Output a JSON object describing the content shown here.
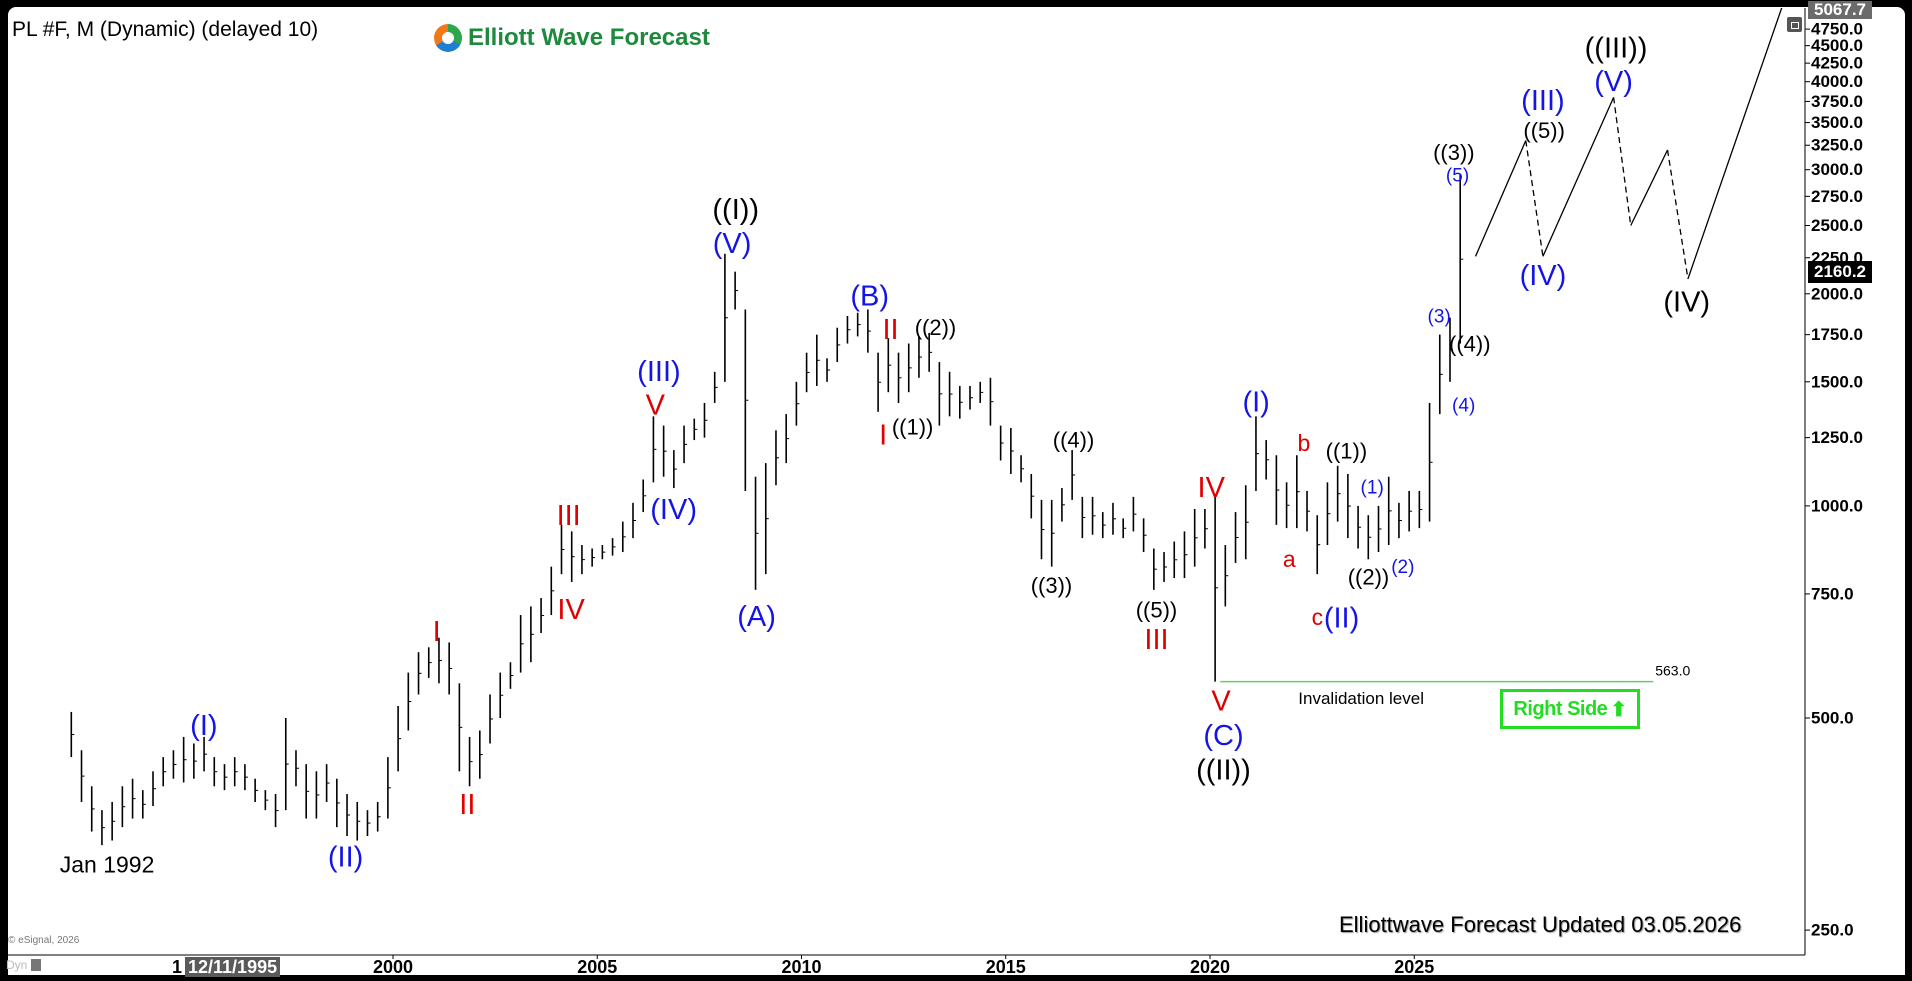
{
  "header": {
    "symbol_title": "PL #F, M (Dynamic) (delayed 10)",
    "logo_text": "Elliott Wave Forecast"
  },
  "footer": {
    "updated_text": "Elliottwave Forecast Updated 03.05.2026",
    "copyright": "© eSignal, 2026",
    "dyn_label": "Dyn",
    "crosshair_date_prefix": "1",
    "crosshair_date": "12/11/1995"
  },
  "price_tags": {
    "top": "5067.7",
    "current": "2160.2"
  },
  "right_side": {
    "label": "Right Side",
    "arrow": "⬆",
    "color": "#22dd22"
  },
  "icons": {
    "restore": "window-restore-icon",
    "lock": "lock-icon"
  },
  "colors": {
    "blue": "#1414e6",
    "red": "#e00000",
    "black": "#000000",
    "invalidation": "#66cc66"
  },
  "chart_data": {
    "type": "ohlc-bar",
    "scale": "log",
    "grid": false,
    "x_ticks": [
      "2000",
      "2005",
      "2010",
      "2015",
      "2020",
      "2025"
    ],
    "y_ticks": [
      250,
      500,
      750,
      1000,
      1250,
      1500,
      1750,
      2000,
      2250,
      2500,
      2750,
      3000,
      3250,
      3500,
      3750,
      4000,
      4250,
      4500,
      4750
    ],
    "y_tick_format": "0.0",
    "ylim": [
      240,
      5100
    ],
    "xlim": [
      1991.8,
      2034.5
    ],
    "bars_period": "quarter",
    "bars_start": 1992,
    "bars_hl": [
      [
        510,
        440
      ],
      [
        450,
        380
      ],
      [
        400,
        345
      ],
      [
        370,
        330
      ],
      [
        380,
        335
      ],
      [
        400,
        350
      ],
      [
        410,
        360
      ],
      [
        395,
        360
      ],
      [
        420,
        375
      ],
      [
        440,
        400
      ],
      [
        450,
        410
      ],
      [
        470,
        405
      ],
      [
        460,
        410
      ],
      [
        470,
        420
      ],
      [
        440,
        400
      ],
      [
        430,
        395
      ],
      [
        440,
        400
      ],
      [
        430,
        395
      ],
      [
        410,
        380
      ],
      [
        395,
        370
      ],
      [
        390,
        350
      ],
      [
        500,
        370
      ],
      [
        450,
        400
      ],
      [
        430,
        360
      ],
      [
        420,
        360
      ],
      [
        430,
        380
      ],
      [
        410,
        350
      ],
      [
        390,
        340
      ],
      [
        380,
        335
      ],
      [
        370,
        340
      ],
      [
        380,
        345
      ],
      [
        440,
        360
      ],
      [
        520,
        420
      ],
      [
        580,
        480
      ],
      [
        620,
        540
      ],
      [
        630,
        570
      ],
      [
        650,
        560
      ],
      [
        640,
        540
      ],
      [
        560,
        420
      ],
      [
        470,
        400
      ],
      [
        480,
        410
      ],
      [
        540,
        460
      ],
      [
        580,
        500
      ],
      [
        600,
        550
      ],
      [
        700,
        580
      ],
      [
        720,
        600
      ],
      [
        740,
        660
      ],
      [
        820,
        700
      ],
      [
        940,
        800
      ],
      [
        920,
        780
      ],
      [
        880,
        800
      ],
      [
        870,
        820
      ],
      [
        880,
        840
      ],
      [
        900,
        850
      ],
      [
        950,
        860
      ],
      [
        1010,
        900
      ],
      [
        1090,
        980
      ],
      [
        1340,
        1080
      ],
      [
        1300,
        1100
      ],
      [
        1200,
        1060
      ],
      [
        1300,
        1150
      ],
      [
        1330,
        1240
      ],
      [
        1400,
        1250
      ],
      [
        1550,
        1400
      ],
      [
        2280,
        1500
      ],
      [
        2150,
        1900
      ],
      [
        1900,
        1050
      ],
      [
        1100,
        760
      ],
      [
        1150,
        800
      ],
      [
        1280,
        1070
      ],
      [
        1350,
        1150
      ],
      [
        1500,
        1300
      ],
      [
        1650,
        1450
      ],
      [
        1750,
        1480
      ],
      [
        1620,
        1500
      ],
      [
        1790,
        1600
      ],
      [
        1860,
        1700
      ],
      [
        1880,
        1740
      ],
      [
        1900,
        1650
      ],
      [
        1650,
        1360
      ],
      [
        1730,
        1450
      ],
      [
        1650,
        1400
      ],
      [
        1700,
        1450
      ],
      [
        1740,
        1520
      ],
      [
        1760,
        1550
      ],
      [
        1600,
        1300
      ],
      [
        1550,
        1340
      ],
      [
        1480,
        1330
      ],
      [
        1480,
        1370
      ],
      [
        1500,
        1400
      ],
      [
        1520,
        1300
      ],
      [
        1300,
        1160
      ],
      [
        1290,
        1110
      ],
      [
        1180,
        1080
      ],
      [
        1110,
        960
      ],
      [
        1020,
        840
      ],
      [
        1020,
        820
      ],
      [
        1060,
        950
      ],
      [
        1200,
        1020
      ],
      [
        1030,
        900
      ],
      [
        1030,
        910
      ],
      [
        980,
        900
      ],
      [
        1010,
        910
      ],
      [
        960,
        900
      ],
      [
        1030,
        920
      ],
      [
        960,
        860
      ],
      [
        870,
        760
      ],
      [
        860,
        780
      ],
      [
        890,
        790
      ],
      [
        920,
        790
      ],
      [
        990,
        820
      ],
      [
        990,
        870
      ],
      [
        1040,
        563
      ],
      [
        880,
        720
      ],
      [
        980,
        830
      ],
      [
        1070,
        840
      ],
      [
        1340,
        1050
      ],
      [
        1240,
        1090
      ],
      [
        1180,
        940
      ],
      [
        1080,
        930
      ],
      [
        1180,
        930
      ],
      [
        1050,
        920
      ],
      [
        970,
        800
      ],
      [
        1080,
        880
      ],
      [
        1140,
        950
      ],
      [
        1110,
        900
      ],
      [
        1000,
        870
      ],
      [
        970,
        840
      ],
      [
        1000,
        860
      ],
      [
        1100,
        880
      ],
      [
        1010,
        900
      ],
      [
        1050,
        920
      ],
      [
        1050,
        930
      ],
      [
        1400,
        950
      ],
      [
        1750,
        1350
      ],
      [
        1850,
        1500
      ],
      [
        2950,
        1700
      ]
    ],
    "last_price": 2160.2,
    "projection": [
      {
        "year": 2026.5,
        "price": 2260,
        "dashed": false
      },
      {
        "year": 2027.73,
        "price": 3300,
        "dashed": true
      },
      {
        "year": 2028.15,
        "price": 2260,
        "dashed": false
      },
      {
        "year": 2029.88,
        "price": 3800,
        "dashed": true
      },
      {
        "year": 2030.3,
        "price": 2500,
        "dashed": false
      },
      {
        "year": 2031.2,
        "price": 3200,
        "dashed": true
      },
      {
        "year": 2031.7,
        "price": 2100,
        "dashed": false
      },
      {
        "year": 2034.0,
        "price": 5100,
        "dashed": false
      }
    ],
    "invalidation": {
      "price": 563.0,
      "label": "563.0",
      "text": "Invalidation level",
      "from": 2020.25,
      "to": 2030.85,
      "text_year": 2023.7,
      "text_price": 533
    },
    "annotations": [
      {
        "text": "Jan 1992",
        "color": "black",
        "year": 1993.0,
        "price": 310,
        "size": "md"
      },
      {
        "text": "(I)",
        "color": "blue",
        "year": 1995.37,
        "price": 487,
        "size": "lg"
      },
      {
        "text": "(II)",
        "color": "blue",
        "year": 1998.84,
        "price": 317,
        "size": "lg"
      },
      {
        "text": "I",
        "color": "red",
        "year": 2001.07,
        "price": 662,
        "size": "lg"
      },
      {
        "text": "II",
        "color": "red",
        "year": 2001.82,
        "price": 376,
        "size": "lg"
      },
      {
        "text": "III",
        "color": "red",
        "year": 2004.3,
        "price": 967,
        "size": "lg"
      },
      {
        "text": "IV",
        "color": "red",
        "year": 2004.36,
        "price": 712,
        "size": "lg"
      },
      {
        "text": "(III)",
        "color": "blue",
        "year": 2006.51,
        "price": 1549,
        "size": "lg"
      },
      {
        "text": "V",
        "color": "red",
        "year": 2006.42,
        "price": 1401,
        "size": "lg"
      },
      {
        "text": "(IV)",
        "color": "blue",
        "year": 2006.87,
        "price": 987,
        "size": "lg"
      },
      {
        "text": "((I))",
        "color": "black",
        "year": 2008.39,
        "price": 2632,
        "size": "lg"
      },
      {
        "text": "(V)",
        "color": "blue",
        "year": 2008.3,
        "price": 2353,
        "size": "lg"
      },
      {
        "text": "(A)",
        "color": "blue",
        "year": 2008.9,
        "price": 696,
        "size": "lg"
      },
      {
        "text": "(B)",
        "color": "blue",
        "year": 2011.67,
        "price": 1982,
        "size": "lg"
      },
      {
        "text": "II",
        "color": "red",
        "year": 2012.18,
        "price": 1794,
        "size": "lg"
      },
      {
        "text": "I",
        "color": "red",
        "year": 2012.0,
        "price": 1258,
        "size": "lg"
      },
      {
        "text": "((1))",
        "color": "black",
        "year": 2012.72,
        "price": 1294,
        "size": "sm"
      },
      {
        "text": "((2))",
        "color": "black",
        "year": 2013.28,
        "price": 1790,
        "size": "sm"
      },
      {
        "text": "((3))",
        "color": "black",
        "year": 2016.12,
        "price": 771,
        "size": "sm"
      },
      {
        "text": "((4))",
        "color": "black",
        "year": 2016.66,
        "price": 1240,
        "size": "sm"
      },
      {
        "text": "((5))",
        "color": "black",
        "year": 2018.69,
        "price": 712,
        "size": "sm"
      },
      {
        "text": "III",
        "color": "red",
        "year": 2018.69,
        "price": 658,
        "size": "lg"
      },
      {
        "text": "IV",
        "color": "red",
        "year": 2020.03,
        "price": 1061,
        "size": "lg"
      },
      {
        "text": "V",
        "color": "red",
        "year": 2020.27,
        "price": 528,
        "size": "lg"
      },
      {
        "text": "(C)",
        "color": "blue",
        "year": 2020.33,
        "price": 481,
        "size": "lg"
      },
      {
        "text": "((II))",
        "color": "black",
        "year": 2020.33,
        "price": 434,
        "size": "lg"
      },
      {
        "text": "(I)",
        "color": "blue",
        "year": 2021.13,
        "price": 1401,
        "size": "lg"
      },
      {
        "text": "a",
        "color": "red",
        "year": 2021.94,
        "price": 841,
        "size": "md"
      },
      {
        "text": "b",
        "color": "red",
        "year": 2022.3,
        "price": 1228,
        "size": "md"
      },
      {
        "text": "c",
        "color": "red",
        "year": 2022.63,
        "price": 696,
        "size": "md"
      },
      {
        "text": "(II)",
        "color": "blue",
        "year": 2022.78,
        "price": 692,
        "size": "lg"
      },
      {
        "text": "((1))",
        "color": "black",
        "year": 2023.34,
        "price": 1196,
        "size": "sm"
      },
      {
        "text": "(1)",
        "color": "blue",
        "year": 2023.97,
        "price": 1061,
        "size": "xs"
      },
      {
        "text": "((2))",
        "color": "black",
        "year": 2023.88,
        "price": 793,
        "size": "sm"
      },
      {
        "text": "(2)",
        "color": "blue",
        "year": 2024.5,
        "price": 818,
        "size": "xs"
      },
      {
        "text": "(3)",
        "color": "blue",
        "year": 2025.61,
        "price": 1853,
        "size": "xs"
      },
      {
        "text": "(4)",
        "color": "blue",
        "year": 2026.21,
        "price": 1386,
        "size": "xs"
      },
      {
        "text": "((4))",
        "color": "black",
        "year": 2026.36,
        "price": 1697,
        "size": "sm"
      },
      {
        "text": "((3))",
        "color": "black",
        "year": 2025.97,
        "price": 3174,
        "size": "sm"
      },
      {
        "text": "(5)",
        "color": "blue",
        "year": 2026.06,
        "price": 2968,
        "size": "xs"
      },
      {
        "text": "(III)",
        "color": "blue",
        "year": 2028.15,
        "price": 3754,
        "size": "lg"
      },
      {
        "text": "((5))",
        "color": "black",
        "year": 2028.18,
        "price": 3410,
        "size": "sm"
      },
      {
        "text": "(IV)",
        "color": "blue",
        "year": 2028.15,
        "price": 2121,
        "size": "lg"
      },
      {
        "text": "((III))",
        "color": "black",
        "year": 2029.94,
        "price": 4455,
        "size": "lg"
      },
      {
        "text": "(V)",
        "color": "blue",
        "year": 2029.88,
        "price": 4034,
        "size": "lg"
      },
      {
        "text": "(IV)",
        "color": "black",
        "year": 2031.67,
        "price": 1944,
        "size": "lg"
      }
    ]
  }
}
